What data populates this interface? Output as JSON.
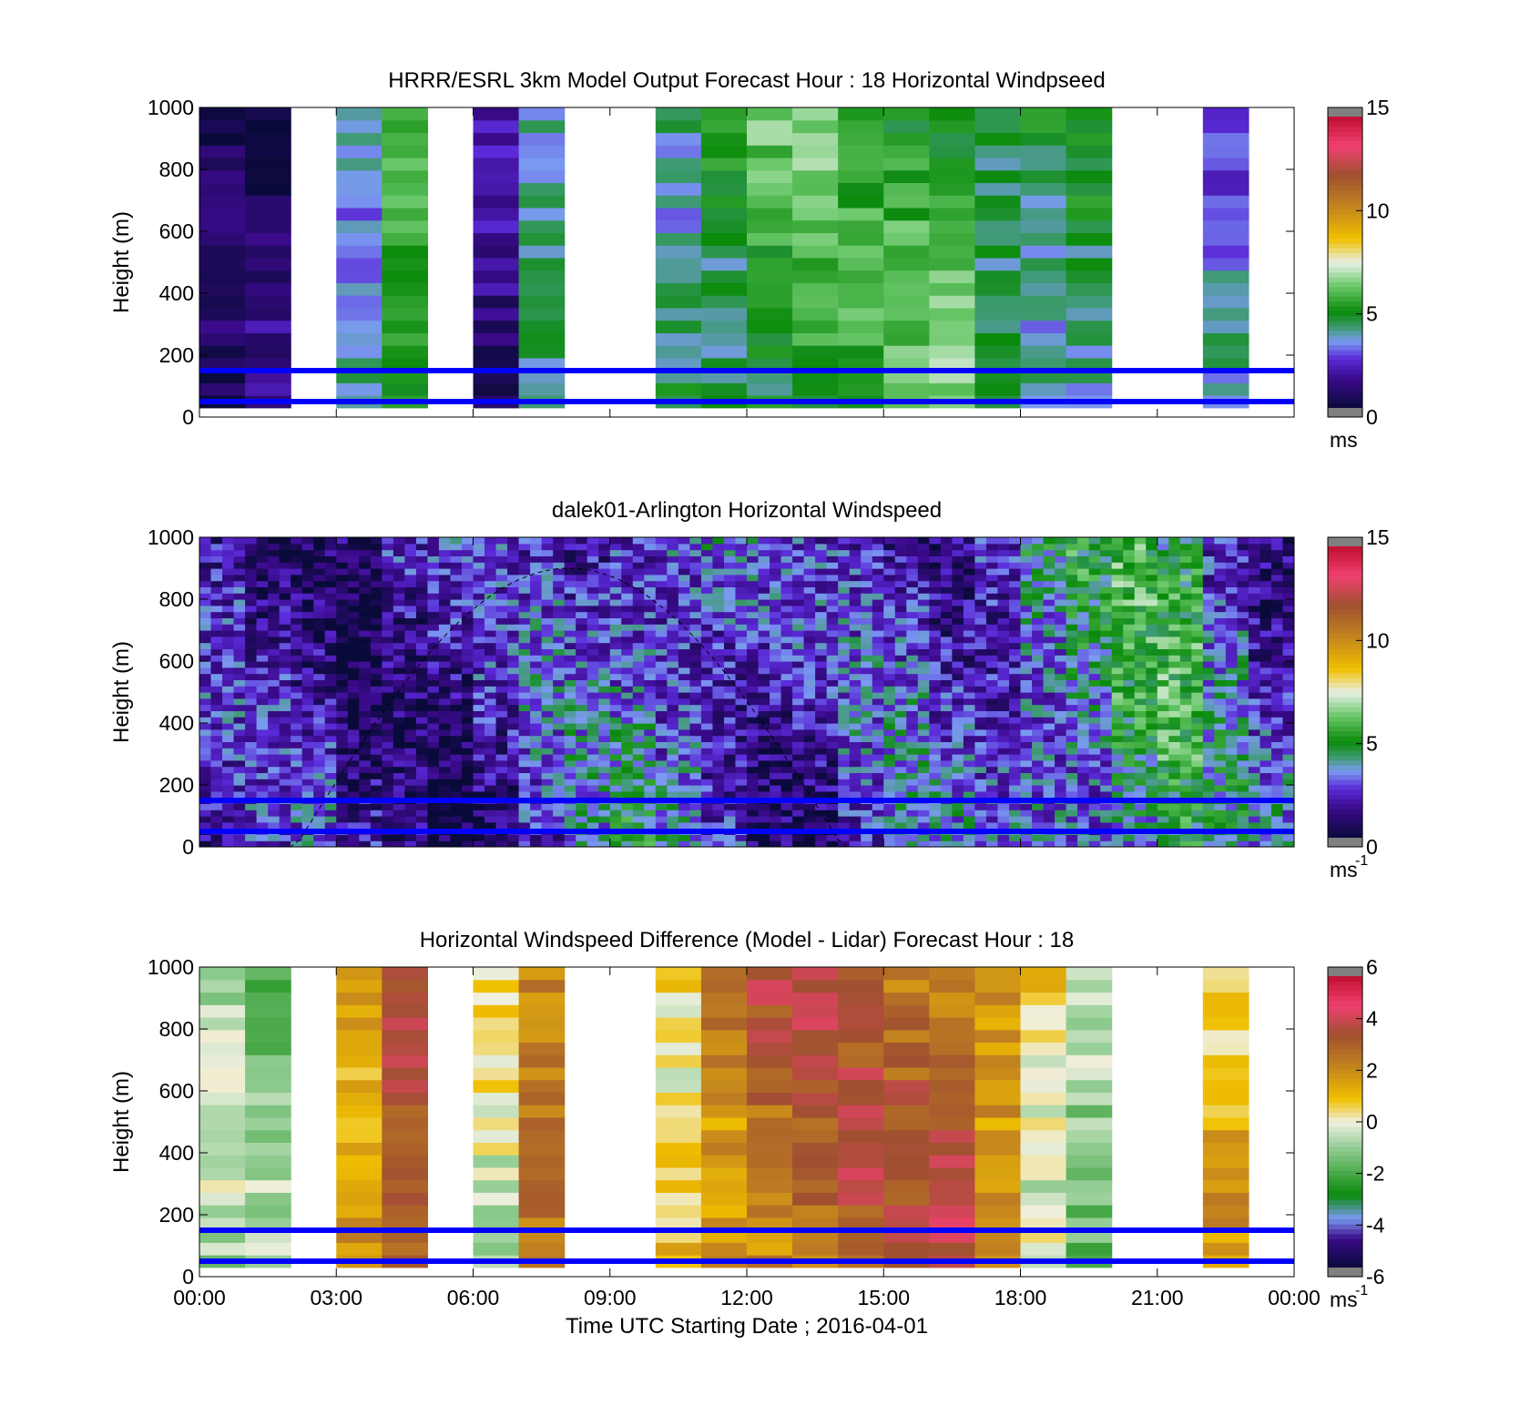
{
  "chart_data": [
    {
      "type": "heatmap",
      "title": "HRRR/ESRL 3km Model Output   Forecast Hour : 18 Horizontal Windpseed",
      "ylabel": "Height (m)",
      "xlabel": "",
      "ylim": [
        0,
        1000
      ],
      "yticks": [
        "0",
        "200",
        "400",
        "600",
        "800",
        "1000"
      ],
      "xticks": [
        "",
        "",
        "",
        "",
        "",
        "",
        "",
        "",
        ""
      ],
      "colorbar": {
        "min": 0,
        "max": 15,
        "ticks": [
          "0",
          "5",
          "10",
          "15"
        ],
        "unit": "ms",
        "unit_sup": "",
        "palette": "speed"
      },
      "reference_lines_m": [
        50,
        150
      ],
      "hourly_mean_ms": [
        0.3,
        0.6,
        null,
        4.0,
        6.0,
        null,
        1.0,
        3.5,
        null,
        null,
        4.5,
        5.0,
        5.5,
        5.5,
        5.0,
        5.5,
        6.0,
        5.0,
        4.5,
        4.5,
        null,
        null,
        3.0,
        null
      ]
    },
    {
      "type": "heatmap",
      "title": "dalek01-Arlington  Horizontal Windspeed",
      "ylabel": "Height (m)",
      "xlabel": "",
      "ylim": [
        0,
        1000
      ],
      "yticks": [
        "0",
        "200",
        "400",
        "600",
        "800",
        "1000"
      ],
      "xticks": [
        "",
        "",
        "",
        "",
        "",
        "",
        "",
        "",
        ""
      ],
      "colorbar": {
        "min": 0,
        "max": 15,
        "ticks": [
          "0",
          "5",
          "10",
          "15"
        ],
        "unit": "ms",
        "unit_sup": "-1",
        "palette": "speed"
      },
      "reference_lines_m": [
        50,
        150
      ],
      "hourly_mean_ms": [
        1.5,
        1.5,
        2.0,
        1.5,
        2.0,
        1.5,
        1.5,
        2.0,
        2.5,
        3.5,
        3.5,
        3.0,
        2.0,
        1.5,
        2.0,
        2.5,
        2.5,
        3.0,
        4.0,
        4.0,
        4.5,
        4.5,
        3.0,
        2.5
      ]
    },
    {
      "type": "heatmap",
      "title": "Horizontal Windspeed Difference (Model - Lidar) Forecast Hour : 18",
      "ylabel": "Height (m)",
      "xlabel": "Time UTC  Starting Date ; 2016-04-01",
      "ylim": [
        0,
        1000
      ],
      "yticks": [
        "0",
        "200",
        "400",
        "600",
        "800",
        "1000"
      ],
      "xticks": [
        "00:00",
        "03:00",
        "06:00",
        "09:00",
        "12:00",
        "15:00",
        "18:00",
        "21:00",
        "00:00"
      ],
      "colorbar": {
        "min": -6,
        "max": 6,
        "ticks": [
          "-6",
          "-4",
          "-2",
          "0",
          "2",
          "4",
          "6"
        ],
        "unit": "ms",
        "unit_sup": "-1",
        "palette": "diff"
      },
      "reference_lines_m": [
        50,
        150
      ],
      "hourly_mean_ms": [
        -1.0,
        -1.5,
        null,
        2.0,
        4.0,
        null,
        -0.5,
        2.0,
        null,
        null,
        1.0,
        2.5,
        3.0,
        3.0,
        3.0,
        3.0,
        3.5,
        2.5,
        0.5,
        -1.0,
        null,
        null,
        1.0,
        null
      ]
    }
  ]
}
